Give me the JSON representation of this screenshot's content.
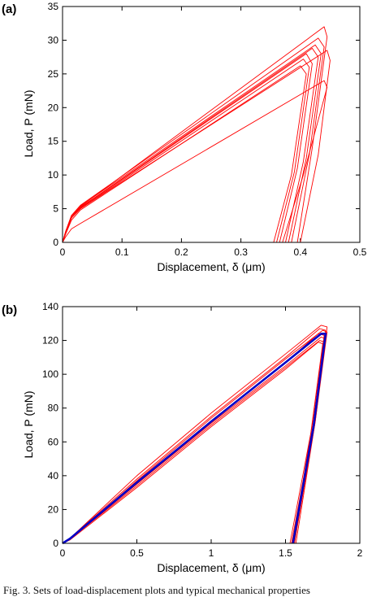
{
  "caption": "Fig. 3. Sets of load-displacement plots and typical mechanical properties",
  "colors": {
    "red": "#ff0000",
    "blue": "#0000c8"
  },
  "chart_data": [
    {
      "panel_label": "(a)",
      "type": "line",
      "xlabel": "Displacement, δ (μm)",
      "ylabel": "Load, P (mN)",
      "xlim": [
        0,
        0.5
      ],
      "ylim": [
        0,
        35
      ],
      "xticks": [
        "0",
        "0.1",
        "0.2",
        "0.3",
        "0.4",
        "0.5"
      ],
      "yticks": [
        "0",
        "5",
        "10",
        "15",
        "20",
        "25",
        "30",
        "35"
      ],
      "grid": false,
      "series": [
        {
          "color": "red",
          "x": [
            0,
            0.005,
            0.015,
            0.03,
            0.44,
            0.445,
            0.42,
            0.395
          ],
          "y": [
            0,
            1.5,
            4.0,
            5.3,
            32.0,
            30.5,
            14.0,
            0
          ]
        },
        {
          "color": "red",
          "x": [
            0,
            0.005,
            0.015,
            0.03,
            0.43,
            0.44,
            0.415,
            0.385
          ],
          "y": [
            0,
            1.6,
            4.0,
            5.5,
            30.3,
            29.0,
            13.0,
            0
          ]
        },
        {
          "color": "red",
          "x": [
            0,
            0.005,
            0.015,
            0.03,
            0.425,
            0.435,
            0.41,
            0.38
          ],
          "y": [
            0,
            1.5,
            3.9,
            5.4,
            29.3,
            28.0,
            12.5,
            0
          ]
        },
        {
          "color": "red",
          "x": [
            0,
            0.005,
            0.015,
            0.03,
            0.42,
            0.43,
            0.405,
            0.375
          ],
          "y": [
            0,
            1.4,
            3.8,
            5.2,
            28.8,
            27.5,
            12.0,
            0
          ]
        },
        {
          "color": "red",
          "x": [
            0,
            0.005,
            0.015,
            0.03,
            0.445,
            0.45,
            0.43,
            0.4
          ],
          "y": [
            0,
            1.5,
            3.9,
            5.0,
            28.5,
            27.0,
            13.0,
            0
          ]
        },
        {
          "color": "red",
          "x": [
            0,
            0.005,
            0.015,
            0.03,
            0.41,
            0.42,
            0.395,
            0.365
          ],
          "y": [
            0,
            1.5,
            3.8,
            5.1,
            28.0,
            26.5,
            11.0,
            0
          ]
        },
        {
          "color": "red",
          "x": [
            0,
            0.005,
            0.015,
            0.03,
            0.405,
            0.415,
            0.39,
            0.36
          ],
          "y": [
            0,
            1.3,
            3.6,
            5.0,
            27.2,
            26.0,
            10.5,
            0
          ]
        },
        {
          "color": "red",
          "x": [
            0,
            0.005,
            0.015,
            0.03,
            0.4,
            0.41,
            0.385,
            0.355
          ],
          "y": [
            0,
            1.2,
            3.3,
            4.8,
            26.2,
            25.0,
            10.0,
            0
          ]
        },
        {
          "color": "red",
          "x": [
            0,
            0.005,
            0.015,
            0.03,
            0.44,
            0.445,
            0.405,
            0.37
          ],
          "y": [
            0,
            0.8,
            2.0,
            2.8,
            24.0,
            23.0,
            10.0,
            0
          ]
        }
      ]
    },
    {
      "panel_label": "(b)",
      "type": "line",
      "xlabel": "Displacement, δ (μm)",
      "ylabel": "Load, P (mN)",
      "xlim": [
        0,
        2
      ],
      "ylim": [
        0,
        140
      ],
      "xticks": [
        "0",
        "0.5",
        "1",
        "1.5",
        "2"
      ],
      "yticks": [
        "0",
        "20",
        "40",
        "60",
        "80",
        "100",
        "120",
        "140"
      ],
      "grid": false,
      "series": [
        {
          "color": "red",
          "x": [
            0,
            0.05,
            0.5,
            1.0,
            1.5,
            1.74,
            1.78,
            1.7,
            1.56
          ],
          "y": [
            0,
            3,
            40,
            77,
            112,
            129,
            128,
            72,
            0
          ]
        },
        {
          "color": "red",
          "x": [
            0,
            0.05,
            0.5,
            1.0,
            1.5,
            1.73,
            1.77,
            1.69,
            1.55
          ],
          "y": [
            0,
            3,
            38,
            75,
            110,
            127,
            126,
            70,
            0
          ]
        },
        {
          "color": "red",
          "x": [
            0,
            0.05,
            0.5,
            1.0,
            1.5,
            1.75,
            1.78,
            1.7,
            1.57
          ],
          "y": [
            0,
            2.5,
            37,
            74,
            109,
            126,
            125,
            72,
            0
          ]
        },
        {
          "color": "red",
          "x": [
            0,
            0.05,
            0.5,
            1.0,
            1.5,
            1.72,
            1.76,
            1.68,
            1.55
          ],
          "y": [
            0,
            2.5,
            36,
            72,
            107,
            124,
            123,
            70,
            0
          ]
        },
        {
          "color": "red",
          "x": [
            0,
            0.05,
            0.5,
            1.0,
            1.5,
            1.74,
            1.77,
            1.69,
            1.56
          ],
          "y": [
            0,
            2.5,
            35,
            71,
            105,
            122,
            121,
            68,
            0
          ]
        },
        {
          "color": "red",
          "x": [
            0,
            0.05,
            0.5,
            1.0,
            1.5,
            1.73,
            1.76,
            1.68,
            1.54
          ],
          "y": [
            0,
            2.5,
            34,
            70,
            104,
            120,
            119,
            66,
            0
          ]
        },
        {
          "color": "red",
          "x": [
            0,
            0.05,
            0.5,
            1.0,
            1.5,
            1.72,
            1.75,
            1.67,
            1.53
          ],
          "y": [
            0,
            2,
            33,
            69,
            103,
            119,
            118,
            65,
            0
          ]
        },
        {
          "color": "blue",
          "x": [
            0,
            0.05,
            0.5,
            1.0,
            1.5,
            1.74,
            1.77,
            1.69,
            1.55
          ],
          "y": [
            0,
            2.8,
            36,
            72,
            107,
            124,
            124,
            70,
            0
          ]
        }
      ]
    }
  ]
}
